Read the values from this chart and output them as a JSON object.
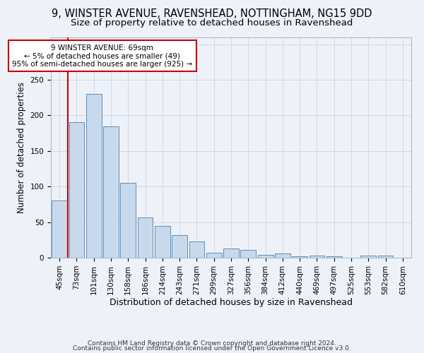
{
  "title_line1": "9, WINSTER AVENUE, RAVENSHEAD, NOTTINGHAM, NG15 9DD",
  "title_line2": "Size of property relative to detached houses in Ravenshead",
  "xlabel": "Distribution of detached houses by size in Ravenshead",
  "ylabel": "Number of detached properties",
  "categories": [
    "45sqm",
    "73sqm",
    "101sqm",
    "130sqm",
    "158sqm",
    "186sqm",
    "214sqm",
    "243sqm",
    "271sqm",
    "299sqm",
    "327sqm",
    "356sqm",
    "384sqm",
    "412sqm",
    "440sqm",
    "469sqm",
    "497sqm",
    "525sqm",
    "553sqm",
    "582sqm",
    "610sqm"
  ],
  "values": [
    80,
    190,
    230,
    185,
    105,
    57,
    45,
    32,
    23,
    7,
    13,
    11,
    4,
    6,
    2,
    3,
    2,
    0,
    3,
    3,
    0
  ],
  "bar_color": "#c9d9ec",
  "bar_edge_color": "#5b8db8",
  "grid_color": "#d0d8e8",
  "background_color": "#eef2f8",
  "red_line_x": 0.5,
  "annotation_text": "9 WINSTER AVENUE: 69sqm\n← 5% of detached houses are smaller (49)\n95% of semi-detached houses are larger (925) →",
  "annotation_box_color": "#ffffff",
  "annotation_edge_color": "#cc0000",
  "red_line_color": "#cc0000",
  "ylim": [
    0,
    310
  ],
  "footer_line1": "Contains HM Land Registry data © Crown copyright and database right 2024.",
  "footer_line2": "Contains public sector information licensed under the Open Government Licence v3.0.",
  "title_fontsize": 10.5,
  "subtitle_fontsize": 9.5,
  "xlabel_fontsize": 9,
  "ylabel_fontsize": 8.5,
  "tick_fontsize": 7.5,
  "footer_fontsize": 6.5,
  "annotation_fontsize": 7.5
}
